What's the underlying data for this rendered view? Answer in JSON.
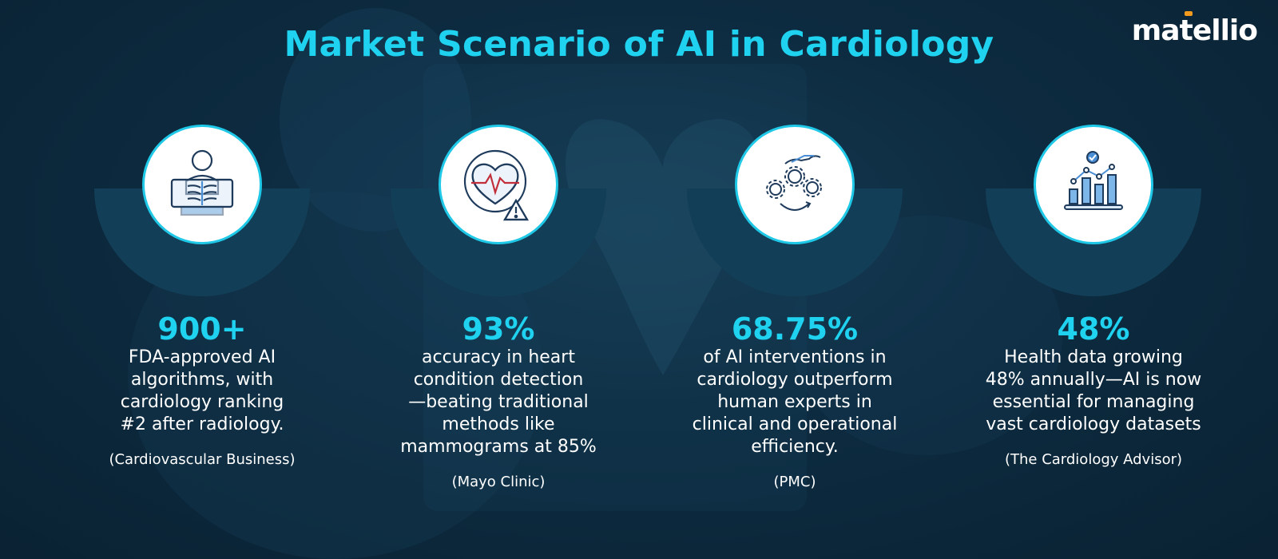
{
  "title": "Market Scenario of AI in Cardiology",
  "logo": {
    "text_before": "ma",
    "dot_char": "t",
    "text_after": "ellio",
    "accent_color": "#f39a1e"
  },
  "colors": {
    "accent": "#1fd3f0",
    "background": "#0d2b40",
    "arc": "#123f57"
  },
  "stats": [
    {
      "icon": "xray-chest-icon",
      "value": "900+",
      "lines": [
        "FDA-approved AI",
        "algorithms, with",
        "cardiology ranking",
        "#2 after radiology."
      ],
      "source": "(Cardiovascular Business)"
    },
    {
      "icon": "heart-alert-icon",
      "value": "93%",
      "lines": [
        "accuracy in heart",
        "condition detection",
        "—beating traditional",
        "methods like",
        "mammograms at 85%"
      ],
      "source": "(Mayo Clinic)"
    },
    {
      "icon": "hand-gears-icon",
      "value": "68.75%",
      "lines": [
        "of AI interventions in",
        "cardiology outperform",
        "human experts in",
        "clinical and operational",
        "efficiency."
      ],
      "source": "(PMC)"
    },
    {
      "icon": "growth-chart-icon",
      "value": "48%",
      "lines": [
        "Health data growing",
        "48% annually—AI is now",
        "essential for managing",
        "vast cardiology datasets"
      ],
      "source": "(The Cardiology Advisor)"
    }
  ]
}
